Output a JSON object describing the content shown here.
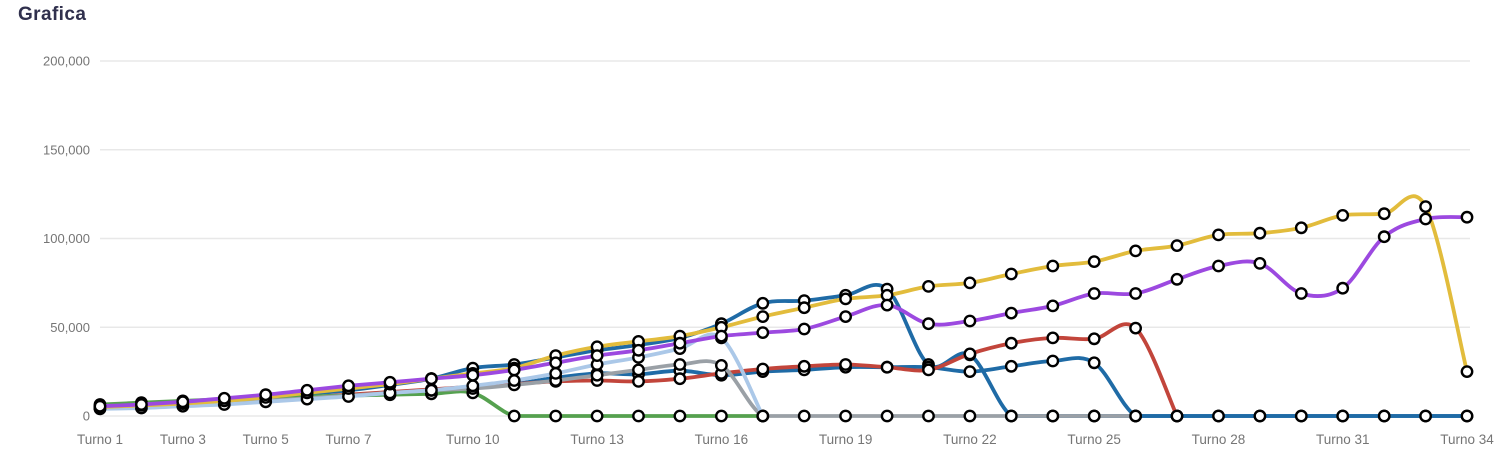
{
  "title": "Grafica",
  "y_axis": {
    "ticks": [
      {
        "value": 0,
        "label": "0"
      },
      {
        "value": 50000,
        "label": "50,000"
      },
      {
        "value": 100000,
        "label": "100,000"
      },
      {
        "value": 150000,
        "label": "150,000"
      },
      {
        "value": 200000,
        "label": "200,000"
      }
    ]
  },
  "x_axis": {
    "ticks": [
      {
        "turno": 1,
        "label": "Turno 1"
      },
      {
        "turno": 3,
        "label": "Turno 3"
      },
      {
        "turno": 5,
        "label": "Turno 5"
      },
      {
        "turno": 7,
        "label": "Turno 7"
      },
      {
        "turno": 10,
        "label": "Turno 10"
      },
      {
        "turno": 13,
        "label": "Turno 13"
      },
      {
        "turno": 16,
        "label": "Turno 16"
      },
      {
        "turno": 19,
        "label": "Turno 19"
      },
      {
        "turno": 22,
        "label": "Turno 22"
      },
      {
        "turno": 25,
        "label": "Turno 25"
      },
      {
        "turno": 28,
        "label": "Turno 28"
      },
      {
        "turno": 31,
        "label": "Turno 31"
      },
      {
        "turno": 34,
        "label": "Turno 34"
      }
    ]
  },
  "chart_data": {
    "type": "line",
    "curve": "smooth",
    "legend": "none",
    "grid": "horizontal",
    "x_count": 34,
    "x_unit": "Turno",
    "ylim": [
      0,
      200000
    ],
    "gridline_color": "#e8e8e8",
    "axis_text_color": "#757575",
    "point_style": {
      "fill": "#ffffff",
      "stroke": "#000000",
      "radius": 5.2,
      "stroke_width": 2.4
    },
    "line_width": 3.8,
    "series": [
      {
        "name": "serie-azul-a",
        "color": "#1f6ba6",
        "values": [
          5000,
          6000,
          7000,
          8500,
          10500,
          12500,
          14500,
          17500,
          21000,
          27000,
          29000,
          33000,
          37000,
          40000,
          44000,
          52000,
          63500,
          65000,
          68000,
          71500,
          29000,
          34500,
          0,
          0,
          0,
          0,
          0,
          0,
          0,
          0,
          0,
          0,
          0,
          0
        ]
      },
      {
        "name": "serie-azul-b",
        "color": "#1f6ba6",
        "values": [
          4500,
          5000,
          6000,
          7000,
          8500,
          10000,
          11500,
          13000,
          14000,
          16000,
          18000,
          21500,
          24000,
          23500,
          25500,
          23000,
          25000,
          26000,
          27500,
          27500,
          27500,
          25000,
          28000,
          31000,
          30000,
          0,
          0,
          0,
          0,
          0,
          0,
          0,
          0,
          0
        ]
      },
      {
        "name": "serie-roja",
        "color": "#c2453b",
        "values": [
          4500,
          5000,
          6000,
          7500,
          9000,
          10500,
          12000,
          13500,
          15000,
          16500,
          18000,
          19500,
          20000,
          19500,
          21000,
          24000,
          26500,
          28000,
          29000,
          27500,
          26000,
          35000,
          41000,
          44000,
          43500,
          49500,
          0,
          null,
          null,
          null,
          null,
          null,
          null,
          null
        ]
      },
      {
        "name": "serie-verde",
        "color": "#55a14f",
        "values": [
          6500,
          7500,
          8500,
          9500,
          10500,
          11000,
          11500,
          12000,
          12500,
          13000,
          0,
          0,
          0,
          0,
          0,
          0,
          0,
          null,
          null,
          null,
          null,
          null,
          null,
          null,
          null,
          null,
          null,
          null,
          null,
          null,
          null,
          null,
          null,
          null
        ]
      },
      {
        "name": "serie-gris",
        "color": "#9aa0a6",
        "values": [
          4500,
          5000,
          6000,
          7000,
          8500,
          10000,
          11500,
          13000,
          14500,
          15500,
          17500,
          20000,
          23000,
          26000,
          29000,
          28500,
          0,
          0,
          0,
          0,
          0,
          0,
          0,
          0,
          0,
          0,
          null,
          null,
          null,
          null,
          null,
          null,
          null,
          null
        ]
      },
      {
        "name": "serie-azul-claro",
        "color": "#abc8e8",
        "values": [
          4000,
          4500,
          5500,
          6500,
          8000,
          9500,
          11000,
          13000,
          14500,
          17000,
          20000,
          24000,
          29000,
          33000,
          38000,
          44000,
          0,
          null,
          null,
          null,
          null,
          null,
          null,
          null,
          null,
          null,
          null,
          null,
          null,
          null,
          null,
          null,
          null,
          null
        ]
      },
      {
        "name": "serie-amarilla",
        "color": "#e2bc3c",
        "values": [
          5000,
          6000,
          7000,
          8500,
          10500,
          13000,
          15500,
          18000,
          21000,
          24000,
          27000,
          34000,
          39000,
          42000,
          45000,
          50000,
          56000,
          61000,
          66000,
          68000,
          73000,
          75000,
          80000,
          84500,
          87000,
          93000,
          96000,
          102000,
          103000,
          106000,
          113000,
          114000,
          118000,
          25000
        ]
      },
      {
        "name": "serie-morada",
        "color": "#9c49e0",
        "values": [
          5500,
          6500,
          8000,
          10000,
          12000,
          14500,
          17000,
          19000,
          21000,
          23000,
          26000,
          30000,
          34000,
          37000,
          41000,
          45000,
          47000,
          49000,
          56000,
          62500,
          52000,
          53500,
          58000,
          62000,
          69000,
          69000,
          77000,
          84500,
          86000,
          69000,
          72000,
          101000,
          111000,
          112000
        ]
      }
    ]
  }
}
